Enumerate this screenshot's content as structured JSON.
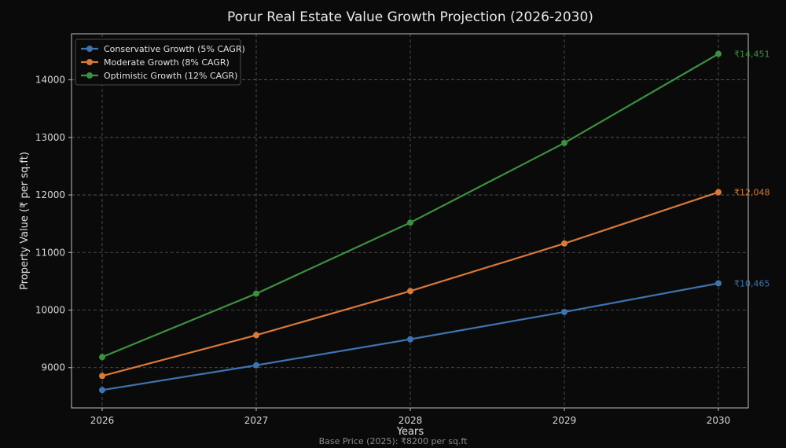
{
  "chart_data": {
    "type": "line",
    "title": "Porur Real Estate Value Growth Projection (2026-2030)",
    "xlabel": "Years",
    "ylabel": "Property Value (₹ per sq.ft)",
    "footnote": "Base Price (2025): ₹8200 per sq.ft",
    "x": [
      2026,
      2027,
      2028,
      2029,
      2030
    ],
    "x_tick_labels": [
      "2026",
      "2027",
      "2028",
      "2029",
      "2030"
    ],
    "ylim": [
      8300,
      14800
    ],
    "y_ticks": [
      9000,
      10000,
      11000,
      12000,
      13000,
      14000
    ],
    "y_tick_labels": [
      "9000",
      "10000",
      "11000",
      "12000",
      "13000",
      "14000"
    ],
    "grid": true,
    "legend_position": "top-left",
    "series": [
      {
        "name": "Conservative Growth (5% CAGR)",
        "color": "#3f73b0",
        "values": [
          8610,
          9041,
          9493,
          9967,
          10465
        ],
        "end_label": "₹10,465"
      },
      {
        "name": "Moderate Growth (8% CAGR)",
        "color": "#d9793a",
        "values": [
          8856,
          9564,
          10330,
          11156,
          12048
        ],
        "end_label": "₹12,048"
      },
      {
        "name": "Optimistic Growth (12% CAGR)",
        "color": "#3c9140",
        "values": [
          9184,
          10286,
          11520,
          12903,
          14451
        ],
        "end_label": "₹14,451"
      }
    ]
  }
}
